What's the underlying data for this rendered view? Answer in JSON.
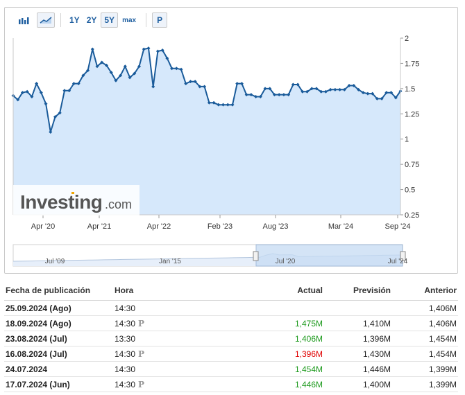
{
  "toolbar": {
    "range_buttons": [
      "1Y",
      "2Y",
      "5Y",
      "max"
    ],
    "active_range": "5Y",
    "p_button": "P"
  },
  "watermark": {
    "brand": "Investing",
    "suffix": ".com"
  },
  "colors": {
    "line": "#1a5b9a",
    "fill": "#d6e8fb",
    "accent": "#1f5fa0",
    "positive": "#1d9a1d",
    "negative": "#e00000"
  },
  "chart_data": {
    "type": "area",
    "x_tick_labels": [
      "Apr '20",
      "Apr '21",
      "Apr '22",
      "Feb '23",
      "Aug '23",
      "Mar '24",
      "Sep '24"
    ],
    "y_tick_labels": [
      "2",
      "1.75",
      "1.5",
      "1.25",
      "1",
      "0.75",
      "0.5",
      "0.25"
    ],
    "ylim": [
      0.25,
      2
    ],
    "grid": false,
    "values": [
      1.43,
      1.39,
      1.46,
      1.47,
      1.42,
      1.55,
      1.46,
      1.35,
      1.07,
      1.22,
      1.26,
      1.48,
      1.48,
      1.55,
      1.55,
      1.63,
      1.68,
      1.89,
      1.72,
      1.76,
      1.73,
      1.66,
      1.58,
      1.63,
      1.72,
      1.61,
      1.65,
      1.72,
      1.89,
      1.9,
      1.52,
      1.87,
      1.88,
      1.8,
      1.7,
      1.7,
      1.69,
      1.55,
      1.57,
      1.57,
      1.52,
      1.52,
      1.36,
      1.36,
      1.34,
      1.34,
      1.34,
      1.34,
      1.55,
      1.55,
      1.44,
      1.44,
      1.42,
      1.42,
      1.5,
      1.5,
      1.44,
      1.44,
      1.44,
      1.44,
      1.54,
      1.54,
      1.47,
      1.47,
      1.5,
      1.5,
      1.47,
      1.47,
      1.49,
      1.49,
      1.49,
      1.49,
      1.53,
      1.53,
      1.49,
      1.46,
      1.45,
      1.45,
      1.4,
      1.4,
      1.46,
      1.46,
      1.41,
      1.475
    ]
  },
  "navigator": {
    "labels": [
      "Jul '09",
      "Jan '15",
      "Jul '20",
      "Jul '24"
    ]
  },
  "table": {
    "headers": {
      "date": "Fecha de publicación",
      "time": "Hora",
      "actual": "Actual",
      "forecast": "Previsión",
      "previous": "Anterior"
    },
    "rows": [
      {
        "date": "25.09.2024 (Ago)",
        "time": "14:30",
        "p": "",
        "actual": "",
        "actual_status": "",
        "forecast": "",
        "previous": "1,406M"
      },
      {
        "date": "18.09.2024 (Ago)",
        "time": "14:30",
        "p": "P",
        "actual": "1,475M",
        "actual_status": "green",
        "forecast": "1,410M",
        "previous": "1,406M"
      },
      {
        "date": "23.08.2024 (Jul)",
        "time": "13:30",
        "p": "",
        "actual": "1,406M",
        "actual_status": "green",
        "forecast": "1,396M",
        "previous": "1,454M"
      },
      {
        "date": "16.08.2024 (Jul)",
        "time": "14:30",
        "p": "P",
        "actual": "1,396M",
        "actual_status": "red",
        "forecast": "1,430M",
        "previous": "1,454M"
      },
      {
        "date": "24.07.2024",
        "time": "14:30",
        "p": "",
        "actual": "1,454M",
        "actual_status": "green",
        "forecast": "1,446M",
        "previous": "1,399M"
      },
      {
        "date": "17.07.2024 (Jun)",
        "time": "14:30",
        "p": "P",
        "actual": "1,446M",
        "actual_status": "green",
        "forecast": "1,400M",
        "previous": "1,399M"
      }
    ]
  }
}
